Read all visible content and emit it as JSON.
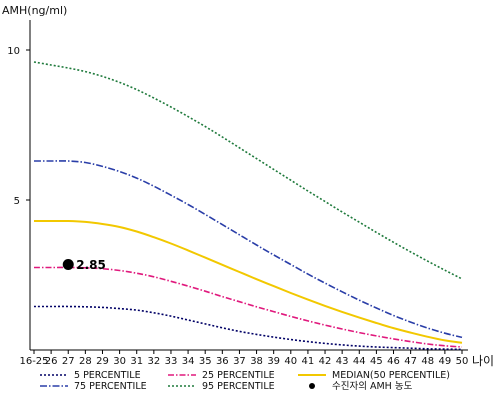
{
  "chart_data": {
    "type": "line",
    "ylabel": "AMH(ng/ml)",
    "xlabel": "나이",
    "y_ticks": [
      5,
      10
    ],
    "ylim": [
      0,
      11
    ],
    "categories": [
      "16-25",
      "26",
      "27",
      "28",
      "29",
      "30",
      "31",
      "32",
      "33",
      "34",
      "35",
      "36",
      "37",
      "38",
      "39",
      "40",
      "41",
      "42",
      "43",
      "44",
      "45",
      "46",
      "47",
      "48",
      "49",
      "50"
    ],
    "series": [
      {
        "name": "5 PERCENTILE",
        "color": "#000066",
        "dash": "2,2",
        "values": [
          1.45,
          1.45,
          1.45,
          1.44,
          1.42,
          1.38,
          1.33,
          1.24,
          1.13,
          1.0,
          0.87,
          0.74,
          0.62,
          0.52,
          0.43,
          0.35,
          0.28,
          0.22,
          0.17,
          0.13,
          0.1,
          0.08,
          0.06,
          0.04,
          0.03,
          0.02
        ]
      },
      {
        "name": "25 PERCENTILE",
        "color": "#e0197d",
        "dash": "6,2,1.5,2",
        "values": [
          2.75,
          2.75,
          2.75,
          2.74,
          2.71,
          2.65,
          2.56,
          2.44,
          2.29,
          2.13,
          1.96,
          1.78,
          1.61,
          1.44,
          1.28,
          1.12,
          0.97,
          0.83,
          0.7,
          0.58,
          0.47,
          0.37,
          0.28,
          0.2,
          0.14,
          0.1
        ]
      },
      {
        "name": "MEDIAN(50 PERCENTILE)",
        "color": "#f2c800",
        "dash": "",
        "values": [
          4.3,
          4.3,
          4.3,
          4.27,
          4.2,
          4.1,
          3.95,
          3.76,
          3.55,
          3.32,
          3.08,
          2.84,
          2.6,
          2.36,
          2.13,
          1.9,
          1.68,
          1.47,
          1.27,
          1.08,
          0.9,
          0.73,
          0.58,
          0.44,
          0.32,
          0.24
        ]
      },
      {
        "name": "75 PERCENTILE",
        "color": "#2a3ea8",
        "dash": "7,2,1.5,2",
        "values": [
          6.3,
          6.3,
          6.3,
          6.25,
          6.12,
          5.95,
          5.73,
          5.46,
          5.16,
          4.85,
          4.52,
          4.18,
          3.84,
          3.5,
          3.17,
          2.85,
          2.53,
          2.23,
          1.94,
          1.66,
          1.4,
          1.15,
          0.93,
          0.73,
          0.56,
          0.42
        ]
      },
      {
        "name": "95 PERCENTILE",
        "color": "#1f7a3c",
        "dash": "2,2",
        "values": [
          9.6,
          9.5,
          9.4,
          9.28,
          9.12,
          8.92,
          8.68,
          8.4,
          8.1,
          7.78,
          7.45,
          7.1,
          6.74,
          6.38,
          6.02,
          5.66,
          5.3,
          4.95,
          4.6,
          4.26,
          3.92,
          3.59,
          3.27,
          2.96,
          2.66,
          2.37
        ]
      }
    ],
    "marker": {
      "name": "수진자의 AMH 농도",
      "x": "27",
      "y": 2.85,
      "label": "2.85",
      "color": "#000000"
    },
    "grid": false,
    "legend_position": "bottom"
  }
}
